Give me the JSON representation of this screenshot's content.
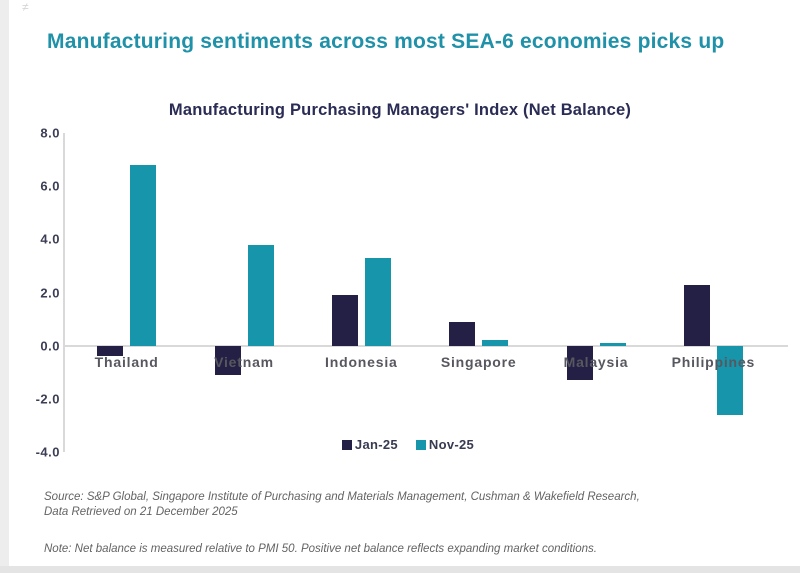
{
  "corner_mark": "≠",
  "page_title": "Manufacturing sentiments across most SEA-6 economies picks up",
  "chart_data": {
    "type": "bar",
    "title": "Manufacturing Purchasing Managers' Index (Net Balance)",
    "categories": [
      "Thailand",
      "Vietnam",
      "Indonesia",
      "Singapore",
      "Malaysia",
      "Philippines"
    ],
    "series": [
      {
        "name": "Jan-25",
        "color": "#241f44",
        "values": [
          -0.4,
          -1.1,
          1.9,
          0.9,
          -1.3,
          2.3
        ]
      },
      {
        "name": "Nov-25",
        "color": "#1795ab",
        "values": [
          6.8,
          3.8,
          3.3,
          0.2,
          0.1,
          -2.6
        ]
      }
    ],
    "ylim": [
      -4,
      8
    ],
    "yticks": [
      8,
      6,
      4,
      2,
      0,
      -2,
      -4
    ],
    "ytick_labels": [
      "8.0",
      "6.0",
      "4.0",
      "2.0",
      "0.0",
      "-2.0",
      "-4.0"
    ],
    "legend_position": "bottom-center",
    "grid": "zero-line-only"
  },
  "footer": {
    "source_line1": "Source: S&P Global, Singapore Institute of Purchasing and Materials Management, Cushman & Wakefield Research,",
    "source_line2": "Data Retrieved on 21 December 2025",
    "note": "Note: Net balance is measured relative to PMI 50. Positive net balance reflects expanding market conditions."
  },
  "colors": {
    "title_teal": "#1f91a8",
    "chart_title_navy": "#2a2c55",
    "bar_navy": "#241f44",
    "bar_teal": "#1795ab",
    "axis_gray": "#d9d9d9",
    "category_label_gray": "#57585f",
    "footer_gray": "#636363"
  }
}
